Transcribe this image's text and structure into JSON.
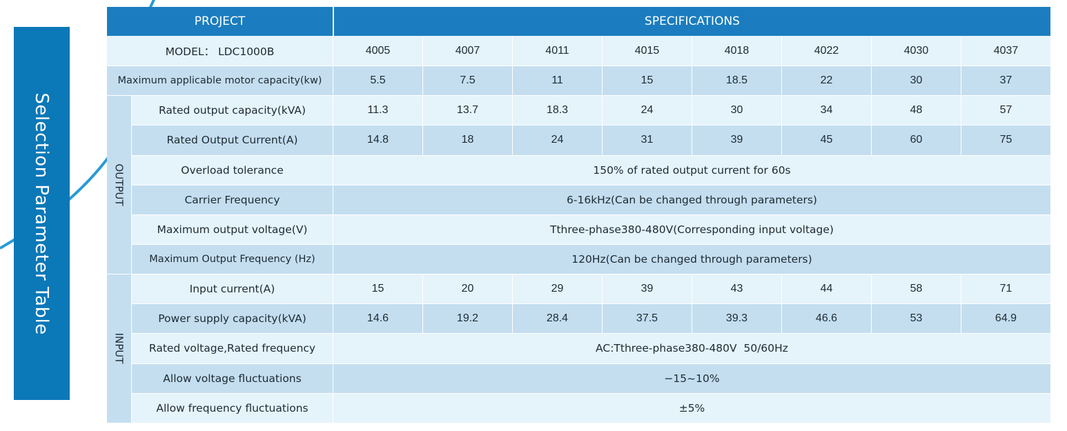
{
  "page": {
    "title": "Selection Parameter Table",
    "colors": {
      "header": "#1b7dbf",
      "side_tab": "#0b78b7",
      "row_light": "#e5f3fb",
      "row_dark": "#c4def0"
    }
  },
  "table": {
    "header_project": "PROJECT",
    "header_specs": "SPECIFICATIONS",
    "model_label": "MODEL： LDC1000B",
    "models": [
      "4005",
      "4007",
      "4011",
      "4015",
      "4018",
      "4022",
      "4030",
      "4037"
    ],
    "motor_capacity_label": "Maximum applicable motor capacity(kw)",
    "motor_capacity": [
      "5.5",
      "7.5",
      "11",
      "15",
      "18.5",
      "22",
      "30",
      "37"
    ],
    "output_section": "OUTPUT",
    "rated_output_capacity_label": "Rated output capacity(kVA)",
    "rated_output_capacity": [
      "11.3",
      "13.7",
      "18.3",
      "24",
      "30",
      "34",
      "48",
      "57"
    ],
    "rated_output_current_label": "Rated Output Current(A)",
    "rated_output_current": [
      "14.8",
      "18",
      "24",
      "31",
      "39",
      "45",
      "60",
      "75"
    ],
    "overload_label": "Overload tolerance",
    "overload_value": "150% of rated output current for 60s",
    "carrier_label": "Carrier Frequency",
    "carrier_value": "6-16kHz(Can be changed through parameters)",
    "max_voltage_label": "Maximum output voltage(V)",
    "max_voltage_value": "Tthree-phase380-480V(Corresponding input voltage)",
    "max_freq_label": "Maximum Output Frequency (Hz)",
    "max_freq_value": "120Hz(Can be changed through parameters)",
    "input_section": "INPUT",
    "input_current_label": "Input current(A)",
    "input_current": [
      "15",
      "20",
      "29",
      "39",
      "43",
      "44",
      "58",
      "71"
    ],
    "power_supply_label": "Power supply capacity(kVA)",
    "power_supply": [
      "14.6",
      "19.2",
      "28.4",
      "37.5",
      "39.3",
      "46.6",
      "53",
      "64.9"
    ],
    "rated_voltage_label": "Rated voltage,Rated frequency",
    "rated_voltage_value": "AC:Tthree-phase380-480V  50/60Hz",
    "voltage_fluct_label": "Allow voltage fluctuations",
    "voltage_fluct_value": "−15~10%",
    "freq_fluct_label": "Allow frequency fluctuations",
    "freq_fluct_value": "±5%"
  }
}
